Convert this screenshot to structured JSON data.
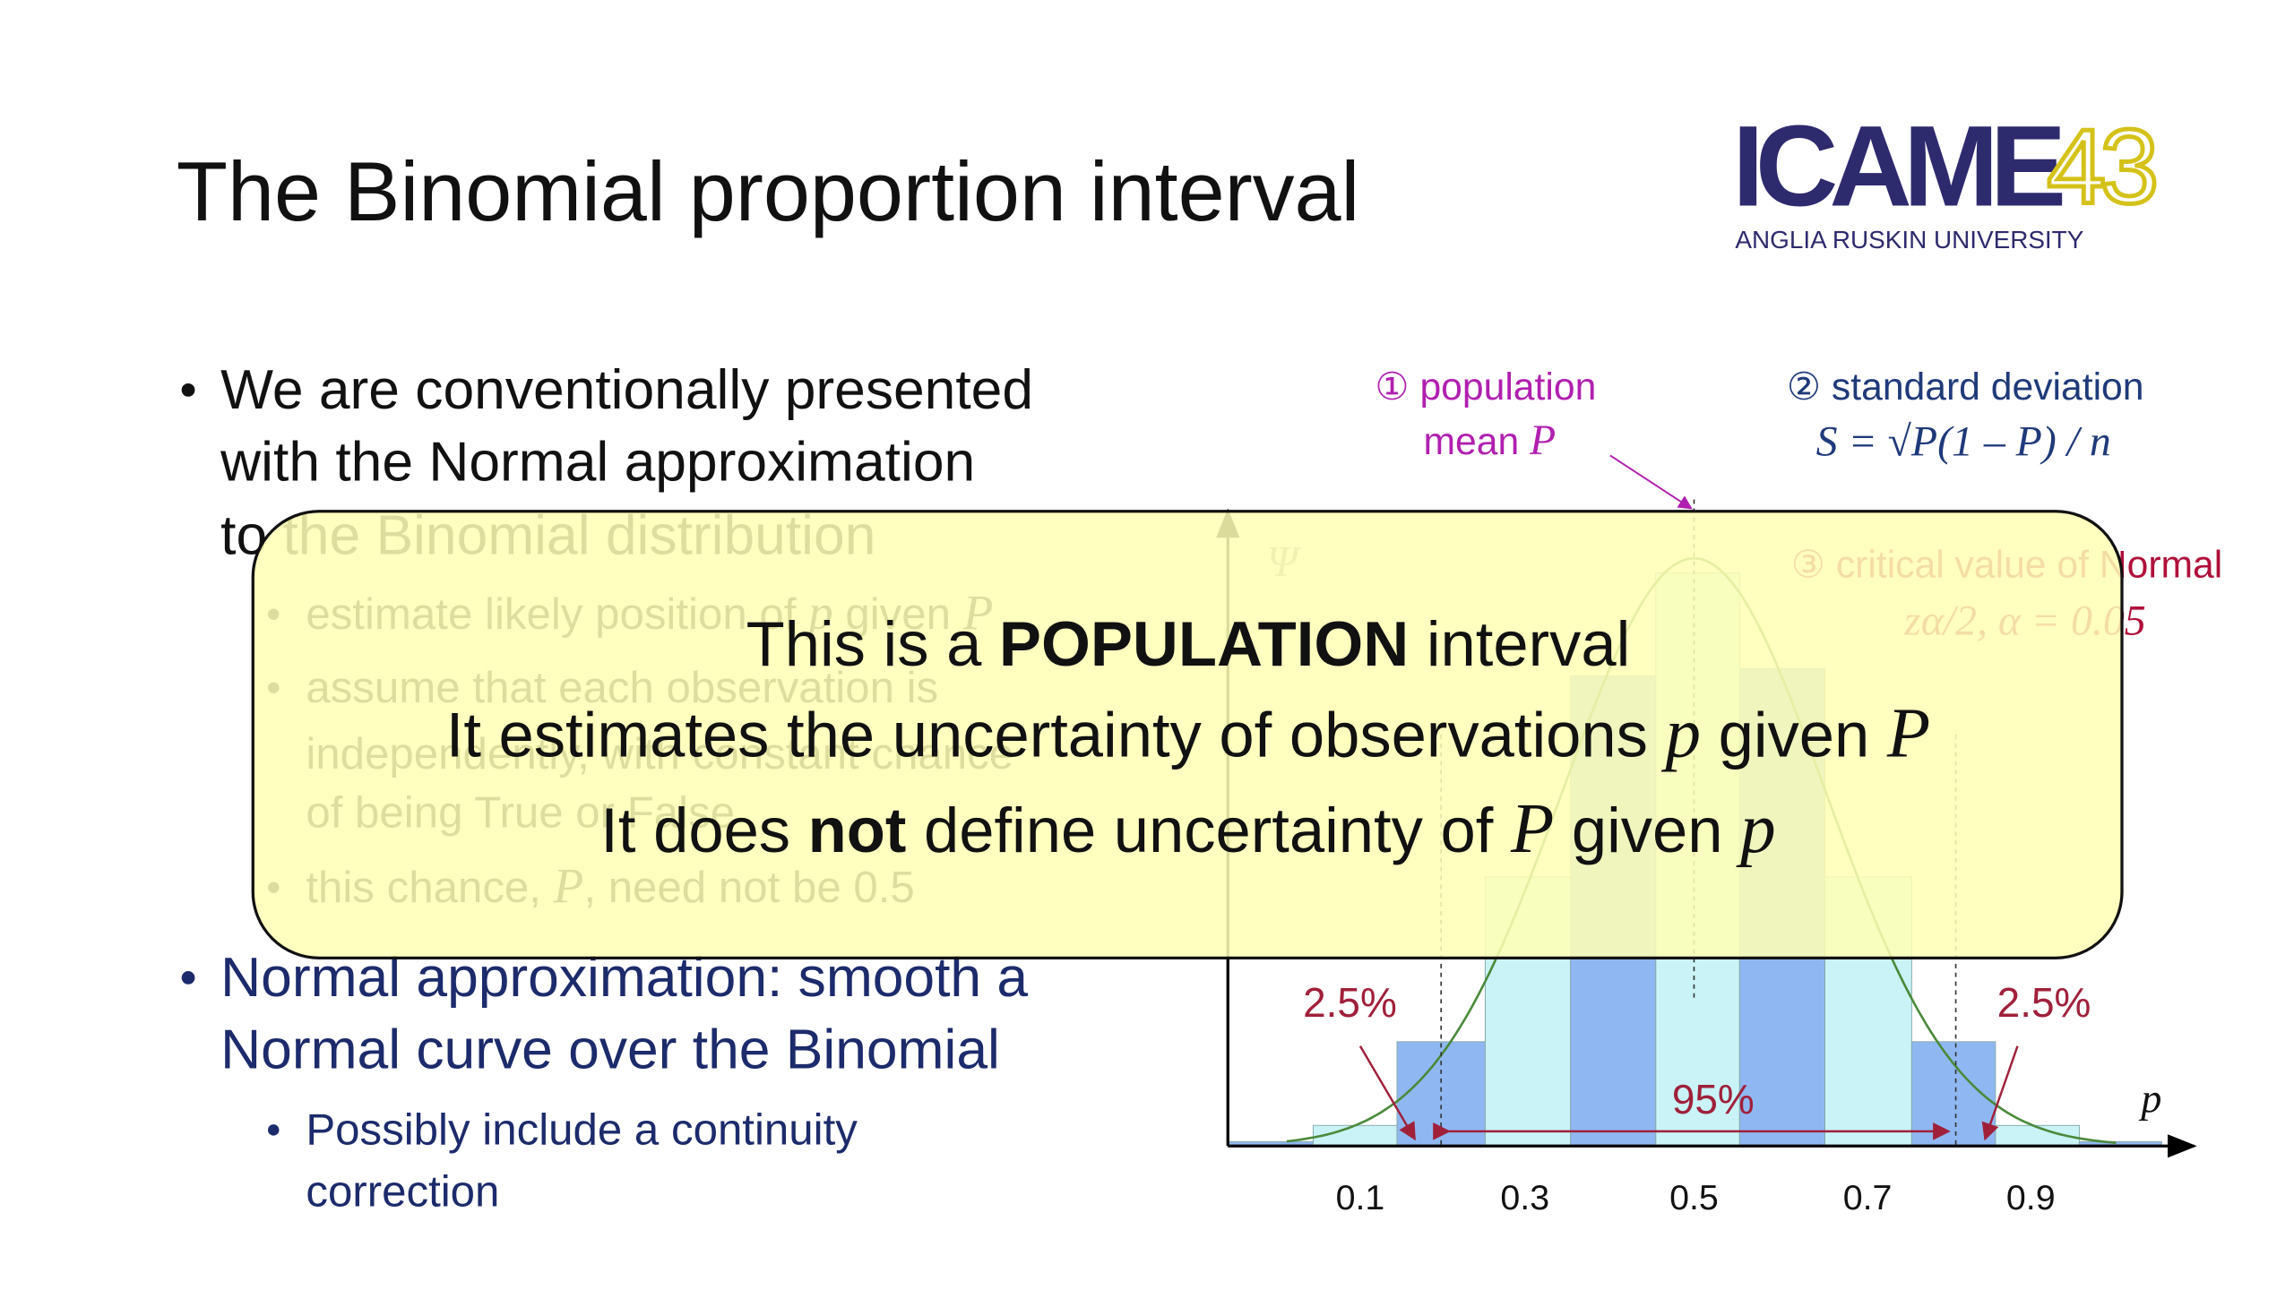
{
  "title": "The Binomial proportion interval",
  "logo": {
    "main": "ICAME",
    "number": "43",
    "university": "ANGLIA RUSKIN UNIVERSITY"
  },
  "bullets": [
    {
      "level": 1,
      "color": "#111111",
      "lines": [
        [
          "We are conventionally presented"
        ],
        [
          "with the Normal approximation"
        ],
        [
          "to the Binomial distribution"
        ]
      ]
    },
    {
      "level": 2,
      "color": "#111111",
      "lines": [
        [
          "estimate likely position of ",
          {
            "text": "p",
            "style": "math"
          },
          " given ",
          {
            "text": "P",
            "style": "math"
          }
        ]
      ]
    },
    {
      "level": 2,
      "color": "#111111",
      "lines": [
        [
          "assume that each observation is"
        ],
        [
          "independently, with constant chance"
        ],
        [
          "of being True or False"
        ]
      ]
    },
    {
      "level": 2,
      "color": "#111111",
      "lines": [
        [
          "this chance, ",
          {
            "text": "P",
            "style": "math"
          },
          ", need not be 0.5"
        ]
      ]
    },
    {
      "level": 1,
      "color": "#1c2b6b",
      "lines": [
        [
          "Normal approximation: smooth a"
        ],
        [
          "Normal curve over the Binomial"
        ]
      ]
    },
    {
      "level": 2,
      "color": "#1c2b6b",
      "lines": [
        [
          "Possibly include a continuity"
        ],
        [
          "correction"
        ]
      ]
    }
  ],
  "figure": {
    "annotations": [
      {
        "color": "#b020b0",
        "lines": [
          [
            "① population"
          ],
          [
            "mean ",
            {
              "text": "P",
              "style": "math"
            }
          ]
        ]
      },
      {
        "color": "#1f3a7a",
        "lines": [
          [
            "② standard deviation"
          ],
          [
            {
              "text": "S = √P(1 – P) / n",
              "style": "math"
            }
          ]
        ]
      },
      {
        "color": "#b0103a",
        "lines": [
          [
            "③ critical value of Normal"
          ],
          [
            {
              "text": "zα/2, α = 0.05",
              "style": "math"
            }
          ]
        ]
      }
    ],
    "y_axis_label": "Ψ",
    "x_axis_label": "p",
    "tail_labels": [
      "2.5%",
      "2.5%"
    ],
    "center_label": "95%",
    "xticks": [
      "0.1",
      "0.3",
      "0.5",
      "0.7",
      "0.9"
    ]
  },
  "callout": {
    "lines": [
      [
        "This is a ",
        {
          "text": "POPULATION",
          "style": "bold"
        },
        " interval"
      ],
      [
        "It estimates the uncertainty of observations ",
        {
          "text": "p",
          "style": "math"
        },
        " given ",
        {
          "text": "P",
          "style": "math"
        }
      ],
      [
        "It does ",
        {
          "text": "not",
          "style": "bold"
        },
        " define uncertainty of ",
        {
          "text": "P",
          "style": "math"
        },
        " given ",
        {
          "text": "p",
          "style": "math"
        }
      ]
    ]
  }
}
